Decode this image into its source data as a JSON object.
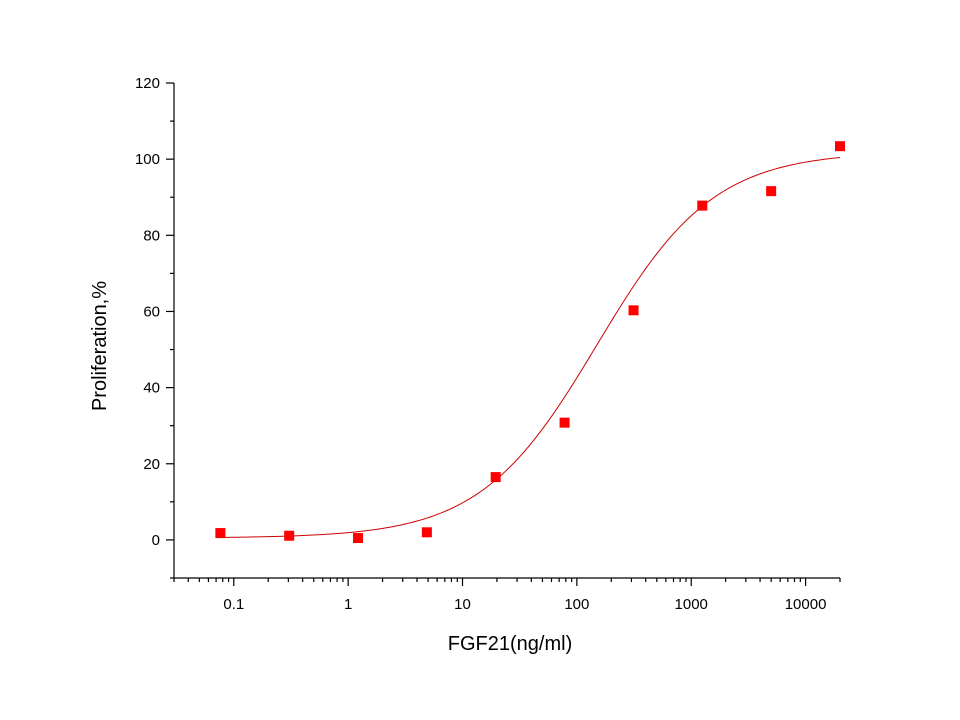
{
  "chart_data": {
    "type": "scatter",
    "xlabel": "FGF21(ng/ml)",
    "ylabel": "Proliferation,%",
    "xscale": "log",
    "xlim": [
      0.03,
      20000
    ],
    "ylim": [
      -10,
      120
    ],
    "x_ticks": [
      0.1,
      1,
      10,
      100,
      1000,
      10000
    ],
    "x_tick_labels": [
      "0.1",
      "1",
      "10",
      "100",
      "1000",
      "10000"
    ],
    "y_ticks": [
      0,
      20,
      40,
      60,
      80,
      100,
      120
    ],
    "y_tick_labels": [
      "0",
      "20",
      "40",
      "60",
      "80",
      "100",
      "120"
    ],
    "grid": false,
    "legend": "none",
    "series": [
      {
        "marker": "square",
        "color": "#ff0000",
        "x": [
          0.0763,
          0.305,
          1.22,
          4.88,
          19.5,
          78.1,
          313,
          1250,
          5000,
          20000
        ],
        "y": [
          1.8,
          1.1,
          0.5,
          2.0,
          16.5,
          30.8,
          60.3,
          87.8,
          91.6,
          103.4
        ]
      }
    ],
    "fit_curve": {
      "model": "4PL",
      "color": "#cc0000",
      "bottom": 0.5,
      "top": 102,
      "ec50": 150,
      "hill": 0.85
    }
  }
}
